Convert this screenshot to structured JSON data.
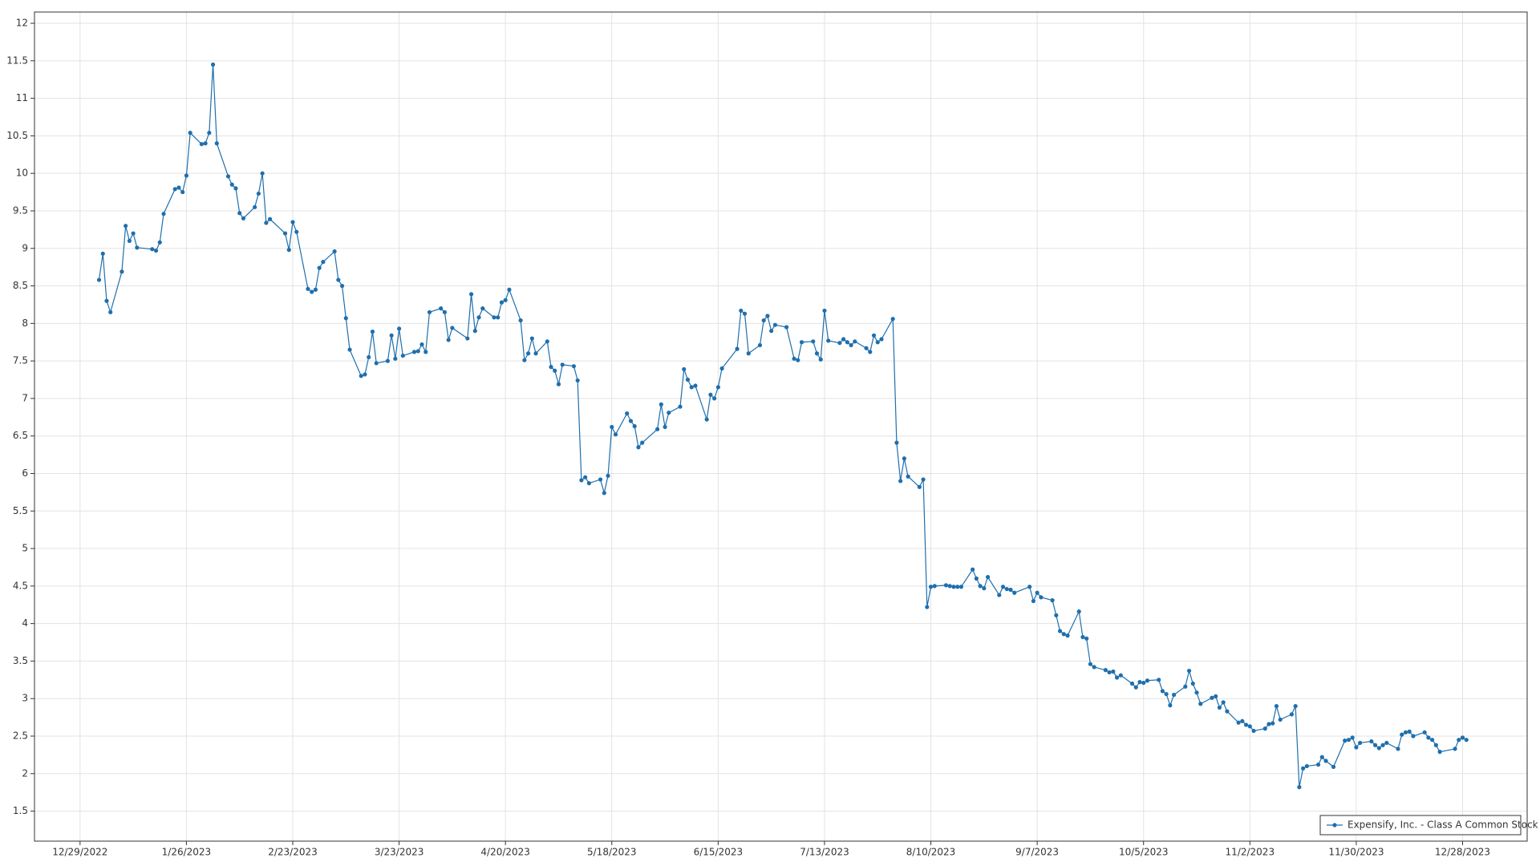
{
  "chart_data": {
    "type": "line",
    "x": [
      "1/3/2023",
      "1/4/2023",
      "1/5/2023",
      "1/6/2023",
      "1/9/2023",
      "1/10/2023",
      "1/11/2023",
      "1/12/2023",
      "1/13/2023",
      "1/17/2023",
      "1/18/2023",
      "1/19/2023",
      "1/20/2023",
      "1/23/2023",
      "1/24/2023",
      "1/25/2023",
      "1/26/2023",
      "1/27/2023",
      "1/30/2023",
      "1/31/2023",
      "2/1/2023",
      "2/2/2023",
      "2/3/2023",
      "2/6/2023",
      "2/7/2023",
      "2/8/2023",
      "2/9/2023",
      "2/10/2023",
      "2/13/2023",
      "2/14/2023",
      "2/15/2023",
      "2/16/2023",
      "2/17/2023",
      "2/21/2023",
      "2/22/2023",
      "2/23/2023",
      "2/24/2023",
      "2/27/2023",
      "2/28/2023",
      "3/1/2023",
      "3/2/2023",
      "3/3/2023",
      "3/6/2023",
      "3/7/2023",
      "3/8/2023",
      "3/9/2023",
      "3/10/2023",
      "3/13/2023",
      "3/14/2023",
      "3/15/2023",
      "3/16/2023",
      "3/17/2023",
      "3/20/2023",
      "3/21/2023",
      "3/22/2023",
      "3/23/2023",
      "3/24/2023",
      "3/27/2023",
      "3/28/2023",
      "3/29/2023",
      "3/30/2023",
      "3/31/2023",
      "4/3/2023",
      "4/4/2023",
      "4/5/2023",
      "4/6/2023",
      "4/10/2023",
      "4/11/2023",
      "4/12/2023",
      "4/13/2023",
      "4/14/2023",
      "4/17/2023",
      "4/18/2023",
      "4/19/2023",
      "4/20/2023",
      "4/21/2023",
      "4/24/2023",
      "4/25/2023",
      "4/26/2023",
      "4/27/2023",
      "4/28/2023",
      "5/1/2023",
      "5/2/2023",
      "5/3/2023",
      "5/4/2023",
      "5/5/2023",
      "5/8/2023",
      "5/9/2023",
      "5/10/2023",
      "5/11/2023",
      "5/12/2023",
      "5/15/2023",
      "5/16/2023",
      "5/17/2023",
      "5/18/2023",
      "5/19/2023",
      "5/22/2023",
      "5/23/2023",
      "5/24/2023",
      "5/25/2023",
      "5/26/2023",
      "5/30/2023",
      "5/31/2023",
      "6/1/2023",
      "6/2/2023",
      "6/5/2023",
      "6/6/2023",
      "6/7/2023",
      "6/8/2023",
      "6/9/2023",
      "6/12/2023",
      "6/13/2023",
      "6/14/2023",
      "6/15/2023",
      "6/16/2023",
      "6/20/2023",
      "6/21/2023",
      "6/22/2023",
      "6/23/2023",
      "6/26/2023",
      "6/27/2023",
      "6/28/2023",
      "6/29/2023",
      "6/30/2023",
      "7/3/2023",
      "7/5/2023",
      "7/6/2023",
      "7/7/2023",
      "7/10/2023",
      "7/11/2023",
      "7/12/2023",
      "7/13/2023",
      "7/14/2023",
      "7/17/2023",
      "7/18/2023",
      "7/19/2023",
      "7/20/2023",
      "7/21/2023",
      "7/24/2023",
      "7/25/2023",
      "7/26/2023",
      "7/27/2023",
      "7/28/2023",
      "7/31/2023",
      "8/1/2023",
      "8/2/2023",
      "8/3/2023",
      "8/4/2023",
      "8/7/2023",
      "8/8/2023",
      "8/9/2023",
      "8/10/2023",
      "8/11/2023",
      "8/14/2023",
      "8/15/2023",
      "8/16/2023",
      "8/17/2023",
      "8/18/2023",
      "8/21/2023",
      "8/22/2023",
      "8/23/2023",
      "8/24/2023",
      "8/25/2023",
      "8/28/2023",
      "8/29/2023",
      "8/30/2023",
      "8/31/2023",
      "9/1/2023",
      "9/5/2023",
      "9/6/2023",
      "9/7/2023",
      "9/8/2023",
      "9/11/2023",
      "9/12/2023",
      "9/13/2023",
      "9/14/2023",
      "9/15/2023",
      "9/18/2023",
      "9/19/2023",
      "9/20/2023",
      "9/21/2023",
      "9/22/2023",
      "9/25/2023",
      "9/26/2023",
      "9/27/2023",
      "9/28/2023",
      "9/29/2023",
      "10/2/2023",
      "10/3/2023",
      "10/4/2023",
      "10/5/2023",
      "10/6/2023",
      "10/9/2023",
      "10/10/2023",
      "10/11/2023",
      "10/12/2023",
      "10/13/2023",
      "10/16/2023",
      "10/17/2023",
      "10/18/2023",
      "10/19/2023",
      "10/20/2023",
      "10/23/2023",
      "10/24/2023",
      "10/25/2023",
      "10/26/2023",
      "10/27/2023",
      "10/30/2023",
      "10/31/2023",
      "11/1/2023",
      "11/2/2023",
      "11/3/2023",
      "11/6/2023",
      "11/7/2023",
      "11/8/2023",
      "11/9/2023",
      "11/10/2023",
      "11/13/2023",
      "11/14/2023",
      "11/15/2023",
      "11/16/2023",
      "11/17/2023",
      "11/20/2023",
      "11/21/2023",
      "11/22/2023",
      "11/24/2023",
      "11/27/2023",
      "11/28/2023",
      "11/29/2023",
      "11/30/2023",
      "12/1/2023",
      "12/4/2023",
      "12/5/2023",
      "12/6/2023",
      "12/7/2023",
      "12/8/2023",
      "12/11/2023",
      "12/12/2023",
      "12/13/2023",
      "12/14/2023",
      "12/15/2023",
      "12/18/2023",
      "12/19/2023",
      "12/20/2023",
      "12/21/2023",
      "12/22/2023",
      "12/26/2023",
      "12/27/2023",
      "12/28/2023",
      "12/29/2023"
    ],
    "series": [
      {
        "name": "Expensify, Inc. - Class A Common Stock",
        "color": "#1f6fad",
        "values": [
          8.58,
          8.93,
          8.3,
          8.15,
          8.69,
          9.3,
          9.1,
          9.2,
          9.01,
          8.99,
          8.97,
          9.08,
          9.46,
          9.79,
          9.81,
          9.75,
          9.97,
          10.54,
          10.39,
          10.4,
          10.54,
          11.45,
          10.4,
          9.96,
          9.85,
          9.8,
          9.47,
          9.4,
          9.55,
          9.73,
          10.0,
          9.34,
          9.39,
          9.2,
          8.98,
          9.35,
          9.22,
          8.46,
          8.42,
          8.45,
          8.74,
          8.82,
          8.96,
          8.58,
          8.5,
          8.07,
          7.65,
          7.3,
          7.32,
          7.55,
          7.89,
          7.47,
          7.5,
          7.84,
          7.53,
          7.93,
          7.57,
          7.62,
          7.63,
          7.72,
          7.62,
          8.15,
          8.2,
          8.15,
          7.78,
          7.94,
          7.8,
          8.39,
          7.9,
          8.08,
          8.2,
          8.08,
          8.08,
          8.28,
          8.31,
          8.45,
          8.04,
          7.51,
          7.6,
          7.8,
          7.6,
          7.76,
          7.42,
          7.37,
          7.19,
          7.45,
          7.43,
          7.24,
          5.91,
          5.95,
          5.87,
          5.92,
          5.74,
          5.97,
          6.62,
          6.52,
          6.8,
          6.7,
          6.63,
          6.35,
          6.41,
          6.59,
          6.92,
          6.62,
          6.81,
          6.89,
          7.39,
          7.25,
          7.15,
          7.17,
          6.72,
          7.05,
          7.0,
          7.15,
          7.4,
          7.66,
          8.17,
          8.13,
          7.6,
          7.71,
          8.04,
          8.1,
          7.9,
          7.98,
          7.95,
          7.53,
          7.51,
          7.75,
          7.76,
          7.6,
          7.52,
          8.17,
          7.77,
          7.74,
          7.79,
          7.75,
          7.71,
          7.76,
          7.67,
          7.62,
          7.84,
          7.75,
          7.79,
          8.06,
          6.41,
          5.9,
          6.2,
          5.96,
          5.82,
          5.92,
          4.22,
          4.49,
          4.5,
          4.51,
          4.5,
          4.49,
          4.49,
          4.49,
          4.72,
          4.6,
          4.5,
          4.47,
          4.62,
          4.38,
          4.49,
          4.46,
          4.45,
          4.41,
          4.49,
          4.3,
          4.41,
          4.35,
          4.31,
          4.11,
          3.9,
          3.86,
          3.84,
          4.16,
          3.82,
          3.8,
          3.46,
          3.42,
          3.38,
          3.35,
          3.36,
          3.28,
          3.31,
          3.2,
          3.15,
          3.22,
          3.21,
          3.24,
          3.25,
          3.1,
          3.06,
          2.91,
          3.05,
          3.16,
          3.37,
          3.2,
          3.08,
          2.93,
          3.01,
          3.03,
          2.88,
          2.95,
          2.83,
          2.68,
          2.7,
          2.65,
          2.63,
          2.57,
          2.6,
          2.66,
          2.67,
          2.9,
          2.72,
          2.79,
          2.9,
          1.82,
          2.07,
          2.1,
          2.12,
          2.22,
          2.17,
          2.09,
          2.44,
          2.45,
          2.48,
          2.35,
          2.41,
          2.43,
          2.38,
          2.34,
          2.38,
          2.41,
          2.33,
          2.52,
          2.55,
          2.56,
          2.5,
          2.55,
          2.48,
          2.45,
          2.38,
          2.29,
          2.33,
          2.45,
          2.48,
          2.45
        ]
      }
    ],
    "xlim": [
      "12/17/2022",
      "1/14/2024"
    ],
    "xticks": [
      "12/29/2022",
      "1/26/2023",
      "2/23/2023",
      "3/23/2023",
      "4/20/2023",
      "5/18/2023",
      "6/15/2023",
      "7/13/2023",
      "8/10/2023",
      "9/7/2023",
      "10/5/2023",
      "11/2/2023",
      "11/30/2023",
      "12/28/2023"
    ],
    "ylim": [
      1.1,
      12.15
    ],
    "yticks": [
      1.5,
      2,
      2.5,
      3,
      3.5,
      4,
      4.5,
      5,
      5.5,
      6,
      6.5,
      7,
      7.5,
      8,
      8.5,
      9,
      9.5,
      10,
      10.5,
      11,
      11.5,
      12
    ],
    "grid": true,
    "legend": "bottom-right"
  }
}
